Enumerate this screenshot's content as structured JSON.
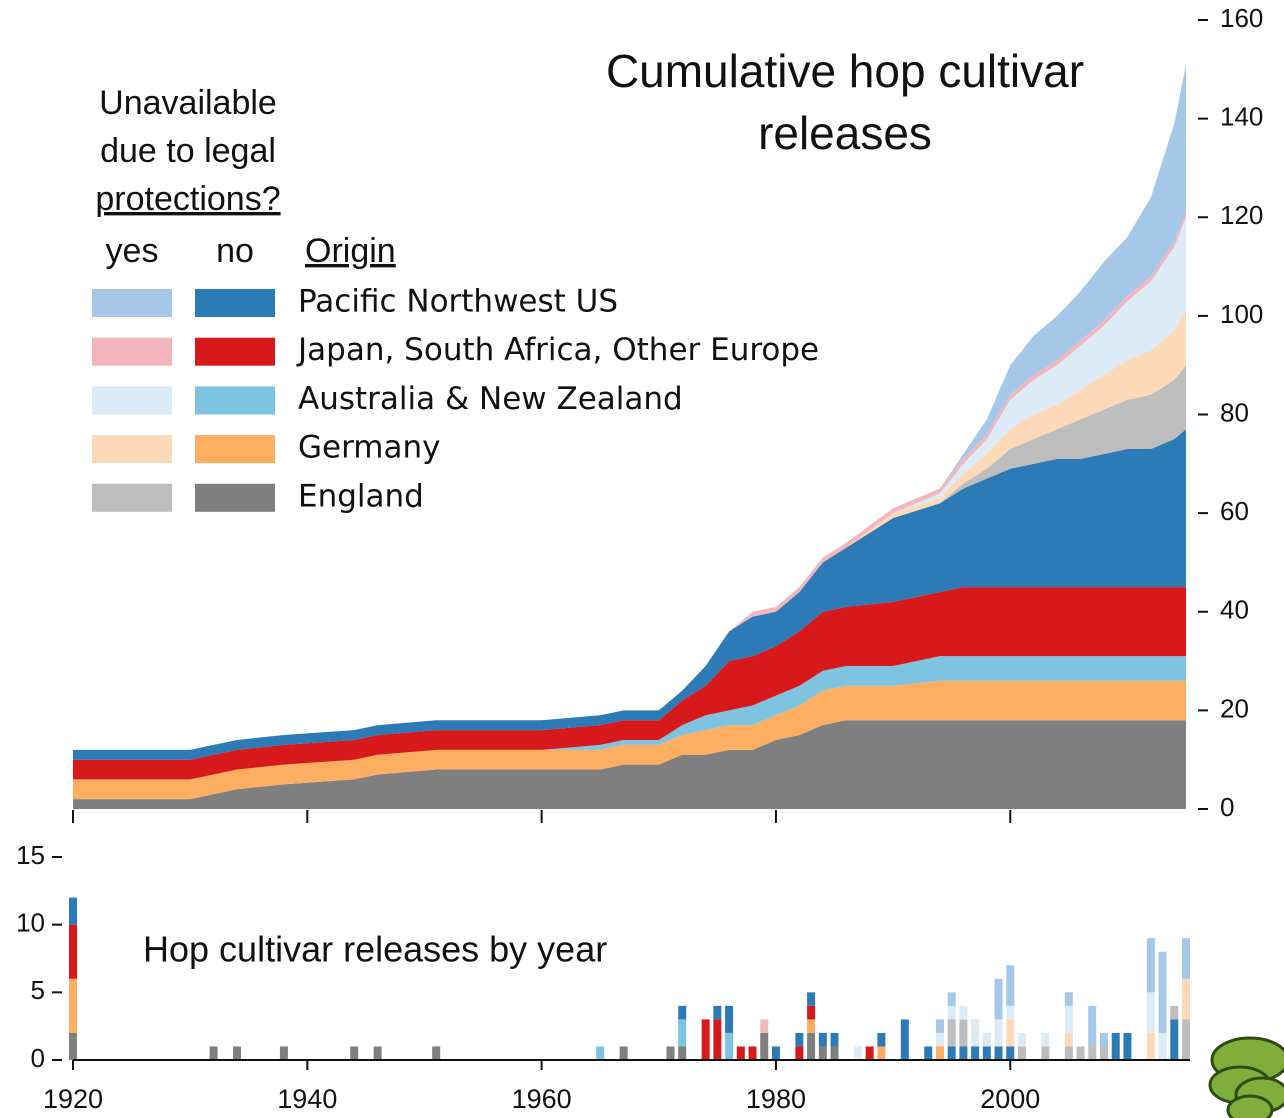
{
  "chart_data": [
    {
      "type": "area",
      "title": "Cumulative hop cultivar releases",
      "x": [
        1920,
        1930,
        1932,
        1934,
        1938,
        1944,
        1946,
        1951,
        1960,
        1965,
        1967,
        1970,
        1972,
        1974,
        1976,
        1978,
        1980,
        1982,
        1984,
        1986,
        1990,
        1994,
        1996,
        1998,
        2000,
        2002,
        2004,
        2006,
        2008,
        2010,
        2012,
        2014,
        2015
      ],
      "xlim": [
        1920,
        2015
      ],
      "xticks": [
        1920,
        1940,
        1960,
        1980,
        2000
      ],
      "ylim": [
        0,
        160
      ],
      "yticks": [
        0,
        20,
        40,
        60,
        80,
        100,
        120,
        140,
        160
      ],
      "y_axis_side": "right",
      "legend": {
        "title": [
          "Unavailable",
          "due to legal",
          "protections?"
        ],
        "columns": [
          "yes",
          "no"
        ],
        "header": "Origin",
        "origins": [
          "Pacific Northwest US",
          "Japan, South Africa, Other Europe",
          "Australia & New Zealand",
          "Germany",
          "England"
        ]
      },
      "series": [
        {
          "origin": 4,
          "protected": false,
          "color": "#7f7f7f",
          "values": [
            2,
            2,
            3,
            4,
            5,
            6,
            7,
            8,
            8,
            8,
            9,
            9,
            11,
            11,
            12,
            12,
            14,
            15,
            17,
            18,
            18,
            18,
            18,
            18,
            18,
            18,
            18,
            18,
            18,
            18,
            18,
            18,
            18
          ]
        },
        {
          "origin": 3,
          "protected": false,
          "color": "#fdae61",
          "values": [
            4,
            4,
            4,
            4,
            4,
            4,
            4,
            4,
            4,
            4,
            4,
            4,
            4,
            5,
            5,
            5,
            5,
            6,
            7,
            7,
            7,
            8,
            8,
            8,
            8,
            8,
            8,
            8,
            8,
            8,
            8,
            8,
            8
          ]
        },
        {
          "origin": 2,
          "protected": false,
          "color": "#7ec3df",
          "values": [
            0,
            0,
            0,
            0,
            0,
            0,
            0,
            0,
            0,
            1,
            1,
            1,
            2,
            3,
            3,
            4,
            4,
            4,
            4,
            4,
            4,
            5,
            5,
            5,
            5,
            5,
            5,
            5,
            5,
            5,
            5,
            5,
            5
          ]
        },
        {
          "origin": 1,
          "protected": false,
          "color": "#d7191c",
          "values": [
            4,
            4,
            4,
            4,
            4,
            4,
            4,
            4,
            4,
            4,
            4,
            4,
            5,
            6,
            10,
            10,
            10,
            11,
            12,
            12,
            13,
            13,
            14,
            14,
            14,
            14,
            14,
            14,
            14,
            14,
            14,
            14,
            14
          ]
        },
        {
          "origin": 0,
          "protected": false,
          "color": "#2c7bb6",
          "values": [
            2,
            2,
            2,
            2,
            2,
            2,
            2,
            2,
            2,
            2,
            2,
            2,
            2,
            4,
            6,
            8,
            7,
            8,
            10,
            12,
            17,
            18,
            20,
            22,
            24,
            25,
            26,
            26,
            27,
            28,
            28,
            30,
            32
          ]
        },
        {
          "origin": 4,
          "protected": true,
          "color": "#bdbdbd",
          "values": [
            0,
            0,
            0,
            0,
            0,
            0,
            0,
            0,
            0,
            0,
            0,
            0,
            0,
            0,
            0,
            0,
            0,
            0,
            0,
            0,
            0,
            0,
            1,
            2,
            4,
            5,
            6,
            8,
            9,
            10,
            11,
            12,
            13
          ]
        },
        {
          "origin": 3,
          "protected": true,
          "color": "#fdd9b8",
          "values": [
            0,
            0,
            0,
            0,
            0,
            0,
            0,
            0,
            0,
            0,
            0,
            0,
            0,
            0,
            0,
            0,
            0,
            0,
            0,
            0,
            1,
            1,
            2,
            3,
            4,
            5,
            5,
            6,
            7,
            8,
            9,
            10,
            11
          ]
        },
        {
          "origin": 2,
          "protected": true,
          "color": "#dcebf5",
          "values": [
            0,
            0,
            0,
            0,
            0,
            0,
            0,
            0,
            0,
            0,
            0,
            0,
            0,
            0,
            0,
            0,
            0,
            0,
            0,
            0,
            0,
            1,
            2,
            3,
            6,
            7,
            8,
            9,
            10,
            12,
            14,
            17,
            19
          ]
        },
        {
          "origin": 1,
          "protected": true,
          "color": "#f4b6bd",
          "values": [
            0,
            0,
            0,
            0,
            0,
            0,
            0,
            0,
            0,
            0,
            0,
            0,
            0,
            0,
            0,
            1,
            1,
            1,
            1,
            1,
            1,
            1,
            1,
            1,
            1,
            1,
            1,
            1,
            1,
            1,
            1,
            1,
            1
          ]
        },
        {
          "origin": 0,
          "protected": true,
          "color": "#a6c8e8",
          "values": [
            0,
            0,
            0,
            0,
            0,
            0,
            0,
            0,
            0,
            0,
            0,
            0,
            0,
            0,
            0,
            0,
            0,
            0,
            0,
            0,
            0,
            0,
            1,
            3,
            6,
            8,
            9,
            10,
            12,
            12,
            16,
            24,
            30
          ]
        }
      ]
    },
    {
      "type": "stacked_bar",
      "title": "Hop cultivar releases by year",
      "x": [
        1920,
        1932,
        1934,
        1938,
        1944,
        1946,
        1951,
        1965,
        1967,
        1971,
        1972,
        1974,
        1975,
        1976,
        1977,
        1978,
        1979,
        1980,
        1982,
        1983,
        1984,
        1985,
        1987,
        1988,
        1989,
        1991,
        1993,
        1994,
        1995,
        1996,
        1997,
        1998,
        1999,
        2000,
        2001,
        2003,
        2005,
        2006,
        2007,
        2008,
        2009,
        2010,
        2012,
        2013,
        2014,
        2015
      ],
      "xlim": [
        1920,
        2015
      ],
      "xticks": [
        1920,
        1940,
        1960,
        1980,
        2000
      ],
      "ylim": [
        0,
        15
      ],
      "yticks": [
        0,
        5,
        10,
        15
      ],
      "series": [
        {
          "color": "#7f7f7f",
          "values": [
            2,
            1,
            1,
            1,
            1,
            1,
            1,
            0,
            1,
            1,
            1,
            0,
            0,
            0,
            0,
            0,
            2,
            0,
            0,
            2,
            1,
            1,
            0,
            0,
            0,
            0,
            0,
            0,
            0,
            0,
            0,
            0,
            0,
            0,
            0,
            0,
            0,
            0,
            0,
            0,
            0,
            0,
            0,
            0,
            0,
            0
          ]
        },
        {
          "color": "#fdae61",
          "values": [
            4,
            0,
            0,
            0,
            0,
            0,
            0,
            0,
            0,
            0,
            0,
            0,
            0,
            0,
            0,
            0,
            0,
            0,
            0,
            1,
            0,
            0,
            0,
            0,
            1,
            0,
            0,
            1,
            0,
            0,
            0,
            0,
            0,
            0,
            0,
            0,
            0,
            0,
            0,
            0,
            0,
            0,
            0,
            0,
            0,
            0
          ]
        },
        {
          "color": "#7ec3df",
          "values": [
            0,
            0,
            0,
            0,
            0,
            0,
            0,
            1,
            0,
            0,
            2,
            0,
            0,
            2,
            0,
            0,
            0,
            0,
            0,
            0,
            0,
            0,
            0,
            0,
            0,
            0,
            0,
            0,
            0,
            0,
            0,
            0,
            0,
            0,
            0,
            0,
            0,
            0,
            0,
            0,
            0,
            0,
            0,
            0,
            0,
            0
          ]
        },
        {
          "color": "#d7191c",
          "values": [
            4,
            0,
            0,
            0,
            0,
            0,
            0,
            0,
            0,
            0,
            0,
            3,
            3,
            0,
            1,
            1,
            0,
            0,
            1,
            1,
            0,
            0,
            0,
            1,
            0,
            0,
            0,
            0,
            0,
            0,
            0,
            0,
            0,
            0,
            0,
            0,
            0,
            0,
            0,
            0,
            0,
            0,
            0,
            0,
            0,
            0
          ]
        },
        {
          "color": "#2c7bb6",
          "values": [
            2,
            0,
            0,
            0,
            0,
            0,
            0,
            0,
            0,
            0,
            1,
            0,
            1,
            2,
            0,
            0,
            0,
            1,
            1,
            1,
            1,
            1,
            0,
            0,
            1,
            3,
            1,
            0,
            1,
            1,
            1,
            1,
            1,
            1,
            0,
            0,
            0,
            0,
            0,
            0,
            2,
            2,
            0,
            0,
            3,
            0
          ]
        },
        {
          "color": "#bdbdbd",
          "values": [
            0,
            0,
            0,
            0,
            0,
            0,
            0,
            0,
            0,
            0,
            0,
            0,
            0,
            0,
            0,
            0,
            0,
            0,
            0,
            0,
            0,
            0,
            0,
            0,
            0,
            0,
            0,
            0,
            2,
            2,
            0,
            0,
            0,
            0,
            1,
            1,
            1,
            1,
            1,
            1,
            0,
            0,
            0,
            0,
            1,
            3
          ]
        },
        {
          "color": "#fdd9b8",
          "values": [
            0,
            0,
            0,
            0,
            0,
            0,
            0,
            0,
            0,
            0,
            0,
            0,
            0,
            0,
            0,
            0,
            0,
            0,
            0,
            0,
            0,
            0,
            0,
            0,
            0,
            0,
            0,
            0,
            0,
            0,
            0,
            0,
            0,
            2,
            0,
            0,
            1,
            0,
            0,
            0,
            0,
            0,
            2,
            0,
            0,
            3
          ]
        },
        {
          "color": "#dcebf5",
          "values": [
            0,
            0,
            0,
            0,
            0,
            0,
            0,
            0,
            0,
            0,
            0,
            0,
            0,
            0,
            0,
            0,
            0,
            0,
            0,
            0,
            0,
            0,
            1,
            0,
            0,
            0,
            0,
            1,
            1,
            1,
            2,
            1,
            2,
            1,
            1,
            1,
            2,
            0,
            0,
            0,
            0,
            0,
            3,
            2,
            0,
            0
          ]
        },
        {
          "color": "#f4b6bd",
          "values": [
            0,
            0,
            0,
            0,
            0,
            0,
            0,
            0,
            0,
            0,
            0,
            0,
            0,
            0,
            0,
            0,
            1,
            0,
            0,
            0,
            0,
            0,
            0,
            0,
            0,
            0,
            0,
            0,
            0,
            0,
            0,
            0,
            0,
            0,
            0,
            0,
            0,
            0,
            0,
            0,
            0,
            0,
            0,
            0,
            0,
            0
          ]
        },
        {
          "color": "#a6c8e8",
          "values": [
            0,
            0,
            0,
            0,
            0,
            0,
            0,
            0,
            0,
            0,
            0,
            0,
            0,
            0,
            0,
            0,
            0,
            0,
            0,
            0,
            0,
            0,
            0,
            0,
            0,
            0,
            0,
            1,
            1,
            0,
            0,
            0,
            3,
            3,
            0,
            0,
            1,
            0,
            3,
            1,
            0,
            0,
            4,
            6,
            0,
            3
          ]
        }
      ]
    }
  ]
}
